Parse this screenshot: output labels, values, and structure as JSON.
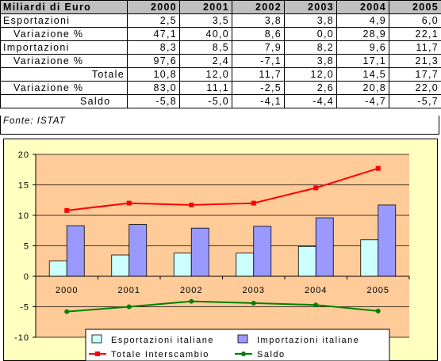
{
  "table": {
    "header": [
      "Miliardi di Euro",
      "2000",
      "2001",
      "2002",
      "2003",
      "2004",
      "2005"
    ],
    "rows": [
      {
        "label": "Esportazioni",
        "values": [
          "2,5",
          "3,5",
          "3,8",
          "3,8",
          "4,9",
          "6,0"
        ]
      },
      {
        "label": "Variazione %",
        "values": [
          "47,1",
          "40,0",
          "8,6",
          "0,0",
          "28,9",
          "22,1"
        ]
      },
      {
        "label": "Importazioni",
        "values": [
          "8,3",
          "8,5",
          "7,9",
          "8,2",
          "9,6",
          "11,7"
        ]
      },
      {
        "label": "Variazione %",
        "values": [
          "97,6",
          "2,4",
          "-7,1",
          "3,8",
          "17,1",
          "21,3"
        ]
      },
      {
        "label": "Totale",
        "values": [
          "10,8",
          "12,0",
          "11,7",
          "12,0",
          "14,5",
          "17,7"
        ]
      },
      {
        "label": "Variazione %",
        "values": [
          "83,0",
          "11,1",
          "-2,5",
          "2,6",
          "20,8",
          "22,0"
        ]
      },
      {
        "label": "Saldo",
        "values": [
          "-5,8",
          "-5,0",
          "-4,1",
          "-4,4",
          "-4,7",
          "-5,7"
        ]
      }
    ],
    "source": "Fonte: ISTAT"
  },
  "chart_data": {
    "type": "bar",
    "categories": [
      "2000",
      "2001",
      "2002",
      "2003",
      "2004",
      "2005"
    ],
    "ylim": [
      -10,
      20
    ],
    "yticks": [
      -10,
      -5,
      0,
      5,
      10,
      15,
      20
    ],
    "grid": true,
    "legend_position": "bottom",
    "series": [
      {
        "name": "Esportazioni italiane",
        "kind": "bar",
        "color": "#ccffff",
        "values": [
          2.5,
          3.5,
          3.8,
          3.8,
          4.9,
          6.0
        ]
      },
      {
        "name": "Importazioni italiane",
        "kind": "bar",
        "color": "#9999ff",
        "values": [
          8.3,
          8.5,
          7.9,
          8.2,
          9.6,
          11.7
        ]
      },
      {
        "name": "Totale Interscambio",
        "kind": "line",
        "marker": "square",
        "color": "#ff0000",
        "values": [
          10.8,
          12.0,
          11.7,
          12.0,
          14.5,
          17.7
        ]
      },
      {
        "name": "Saldo",
        "kind": "line",
        "marker": "circle",
        "color": "#008000",
        "values": [
          -5.8,
          -5.0,
          -4.1,
          -4.4,
          -4.7,
          -5.7
        ]
      }
    ],
    "colors": {
      "plot_background": "#ffcc99",
      "chart_background": "#ffffc0"
    }
  }
}
